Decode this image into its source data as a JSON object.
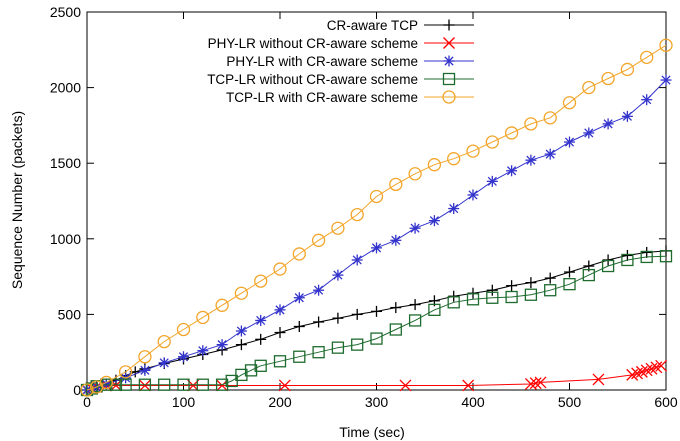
{
  "chart_data": {
    "type": "line",
    "title": "",
    "xlabel": "Time (sec)",
    "ylabel": "Sequence Number (packets)",
    "xlim": [
      0,
      600
    ],
    "ylim": [
      0,
      2500
    ],
    "xticks": [
      0,
      100,
      200,
      300,
      400,
      500,
      600
    ],
    "yticks": [
      0,
      500,
      1000,
      1500,
      2000,
      2500
    ],
    "grid": false,
    "legend_position": "top-left",
    "series": [
      {
        "name": "CR-aware TCP",
        "color": "#000000",
        "marker": "plus",
        "x": [
          0,
          5,
          10,
          20,
          30,
          40,
          50,
          60,
          80,
          100,
          120,
          140,
          160,
          180,
          200,
          220,
          240,
          260,
          280,
          300,
          320,
          340,
          360,
          380,
          400,
          420,
          440,
          460,
          480,
          500,
          520,
          540,
          560,
          580,
          600
        ],
        "y": [
          0,
          10,
          20,
          40,
          65,
          95,
          120,
          140,
          175,
          205,
          235,
          265,
          300,
          335,
          380,
          420,
          450,
          475,
          500,
          520,
          545,
          565,
          590,
          620,
          640,
          660,
          690,
          710,
          740,
          780,
          820,
          860,
          890,
          910,
          920
        ]
      },
      {
        "name": "PHY-LR without CR-aware scheme",
        "color": "#ff0000",
        "marker": "x",
        "x": [
          0,
          5,
          10,
          20,
          30,
          60,
          110,
          140,
          205,
          330,
          395,
          460,
          465,
          470,
          530,
          565,
          570,
          575,
          580,
          585,
          590,
          595
        ],
        "y": [
          0,
          10,
          20,
          30,
          30,
          30,
          30,
          30,
          30,
          30,
          30,
          40,
          45,
          50,
          70,
          100,
          110,
          120,
          130,
          140,
          150,
          160
        ]
      },
      {
        "name": "PHY-LR with CR-aware scheme",
        "color": "#3333cc",
        "marker": "asterisk",
        "x": [
          0,
          10,
          20,
          40,
          60,
          80,
          100,
          120,
          140,
          160,
          180,
          200,
          220,
          240,
          260,
          280,
          300,
          320,
          340,
          360,
          380,
          400,
          420,
          440,
          460,
          480,
          500,
          520,
          540,
          560,
          580,
          600
        ],
        "y": [
          0,
          15,
          40,
          80,
          130,
          180,
          220,
          260,
          300,
          390,
          460,
          530,
          610,
          660,
          760,
          860,
          940,
          990,
          1070,
          1120,
          1200,
          1290,
          1380,
          1450,
          1520,
          1560,
          1640,
          1700,
          1760,
          1810,
          1920,
          2050
        ]
      },
      {
        "name": "TCP-LR without CR-aware scheme",
        "color": "#1e6b2e",
        "marker": "square",
        "x": [
          0,
          5,
          10,
          20,
          30,
          40,
          60,
          80,
          100,
          120,
          140,
          150,
          160,
          170,
          180,
          200,
          220,
          240,
          260,
          280,
          300,
          320,
          340,
          360,
          380,
          400,
          420,
          440,
          460,
          480,
          500,
          520,
          540,
          560,
          580,
          600
        ],
        "y": [
          0,
          10,
          25,
          35,
          35,
          35,
          35,
          35,
          35,
          35,
          35,
          60,
          100,
          130,
          160,
          190,
          220,
          250,
          280,
          300,
          340,
          400,
          460,
          530,
          580,
          600,
          610,
          615,
          630,
          660,
          700,
          760,
          820,
          860,
          880,
          885
        ]
      },
      {
        "name": "TCP-LR with CR-aware scheme",
        "color": "#f2a52a",
        "marker": "circle",
        "x": [
          0,
          10,
          20,
          40,
          60,
          80,
          100,
          120,
          140,
          160,
          180,
          200,
          220,
          240,
          260,
          280,
          300,
          320,
          340,
          360,
          380,
          400,
          420,
          440,
          460,
          480,
          500,
          520,
          540,
          560,
          580,
          600
        ],
        "y": [
          0,
          20,
          50,
          120,
          220,
          320,
          400,
          480,
          560,
          640,
          720,
          800,
          900,
          990,
          1070,
          1160,
          1280,
          1360,
          1430,
          1490,
          1530,
          1580,
          1640,
          1700,
          1760,
          1800,
          1900,
          2000,
          2060,
          2120,
          2200,
          2280
        ]
      }
    ]
  }
}
